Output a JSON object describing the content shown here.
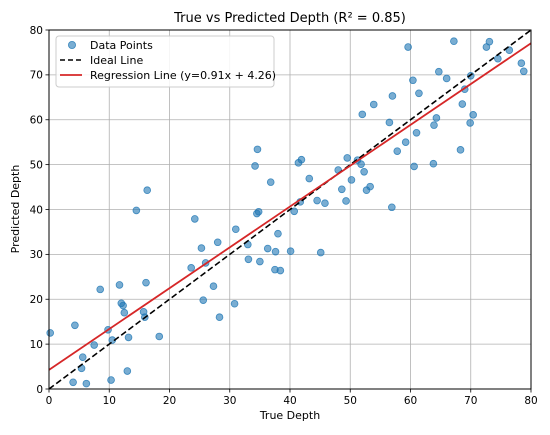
{
  "chart_data": {
    "type": "scatter",
    "title": "True vs Predicted Depth (R² = 0.85)",
    "xlabel": "True Depth",
    "ylabel": "Predicted Depth",
    "xlim": [
      0,
      80
    ],
    "ylim": [
      0,
      80
    ],
    "xticks": [
      "0",
      "10",
      "20",
      "30",
      "40",
      "50",
      "60",
      "70",
      "80"
    ],
    "yticks": [
      "0",
      "10",
      "20",
      "30",
      "40",
      "50",
      "60",
      "70",
      "80"
    ],
    "grid": true,
    "legend_position": "top-left",
    "colors": {
      "points": "#1f77b4",
      "ideal": "#000000",
      "regression": "#d62728"
    },
    "series": [
      {
        "name": "Data Points",
        "kind": "scatter",
        "x": [
          0.2,
          4.0,
          4.3,
          5.4,
          5.6,
          6.2,
          7.5,
          8.5,
          9.8,
          10.3,
          10.5,
          11.7,
          12.0,
          12.3,
          12.5,
          13.0,
          13.2,
          14.5,
          15.7,
          15.9,
          16.1,
          16.3,
          18.3,
          23.6,
          24.2,
          25.3,
          25.6,
          26.0,
          27.3,
          28.0,
          28.3,
          30.8,
          31.0,
          33.0,
          33.1,
          34.2,
          34.5,
          34.6,
          34.8,
          35.0,
          36.3,
          36.8,
          37.5,
          37.6,
          38.0,
          38.4,
          40.1,
          40.7,
          41.4,
          41.7,
          41.9,
          43.2,
          44.5,
          45.1,
          45.8,
          48.0,
          48.6,
          49.3,
          49.5,
          50.2,
          51.2,
          51.8,
          52.0,
          52.3,
          52.7,
          53.3,
          53.9,
          56.5,
          56.9,
          57.0,
          57.8,
          59.2,
          59.6,
          60.4,
          60.6,
          61.0,
          61.4,
          63.8,
          63.9,
          64.3,
          64.7,
          66.0,
          67.2,
          68.3,
          68.6,
          69.0,
          69.9,
          70.0,
          70.4,
          72.6,
          73.1,
          74.5,
          76.4,
          78.4,
          78.8
        ],
        "y": [
          12.5,
          1.5,
          14.2,
          4.6,
          7.1,
          1.2,
          9.8,
          22.2,
          13.2,
          2.0,
          10.9,
          23.2,
          19.1,
          18.6,
          17.0,
          4.0,
          11.5,
          39.8,
          17.2,
          16.0,
          23.7,
          44.3,
          11.7,
          27.0,
          37.9,
          31.4,
          19.8,
          28.1,
          22.9,
          32.7,
          16.0,
          19.0,
          35.6,
          32.2,
          28.9,
          49.7,
          39.1,
          53.4,
          39.5,
          28.4,
          31.3,
          46.1,
          26.6,
          30.6,
          34.6,
          26.4,
          30.7,
          39.6,
          50.4,
          41.7,
          51.1,
          46.9,
          42.0,
          30.4,
          41.4,
          48.8,
          44.5,
          41.9,
          51.5,
          46.6,
          51.0,
          50.1,
          61.2,
          48.4,
          44.3,
          45.1,
          63.4,
          59.4,
          40.5,
          65.3,
          53.0,
          55.0,
          76.2,
          68.8,
          49.6,
          57.1,
          65.9,
          50.2,
          58.8,
          60.4,
          70.7,
          69.2,
          77.5,
          53.3,
          63.5,
          66.8,
          59.3,
          69.8,
          61.1,
          76.2,
          77.4,
          73.6,
          75.5,
          72.6,
          70.8
        ]
      },
      {
        "name": "Ideal Line",
        "kind": "line",
        "style": "dashed",
        "x": [
          0,
          80
        ],
        "y": [
          0,
          80
        ]
      },
      {
        "name": "Regression Line (y=0.91x + 4.26)",
        "kind": "line",
        "style": "solid",
        "x": [
          0,
          80
        ],
        "y": [
          4.26,
          77.06
        ]
      }
    ]
  }
}
